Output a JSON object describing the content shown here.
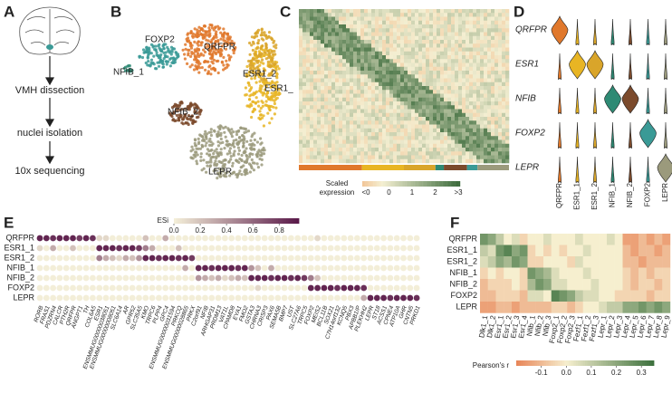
{
  "letters": [
    "A",
    "B",
    "C",
    "D",
    "E",
    "F"
  ],
  "panel_a": {
    "steps": [
      "VMH dissection",
      "nuclei isolation",
      "10x sequencing"
    ]
  },
  "panel_b": {
    "cluster_labels": [
      "QRFPR",
      "FOXP2",
      "NFIB_1",
      "ESR1_2",
      "ESR1_",
      "NFIB_2",
      "LEPR"
    ]
  },
  "clusters": {
    "names": [
      "QRFPR",
      "ESR1_1",
      "ESR1_2",
      "NFIB_1",
      "NFIB_2",
      "FOXP2",
      "LEPR"
    ],
    "colors": [
      "#e0782c",
      "#e8b524",
      "#d9a52a",
      "#2e8a74",
      "#7b4a2c",
      "#3a9a96",
      "#9b9a7c"
    ]
  },
  "panel_c": {
    "colorbar_title": [
      "Scaled",
      "expression"
    ],
    "colorbar_ticks": [
      "<0",
      "0",
      "1",
      "2",
      ">3"
    ]
  },
  "panel_d": {
    "genes": [
      "QRFPR",
      "ESR1",
      "NFIB",
      "FOXP2",
      "LEPR"
    ]
  },
  "panel_e": {
    "colorbar_title": "ESi",
    "colorbar_lim": [
      0,
      0.95
    ],
    "colorbar_ticks": [
      {
        "value": 0,
        "label": "0.0"
      },
      {
        "value": 0.2,
        "label": "0.2"
      },
      {
        "value": 0.4,
        "label": "0.4"
      },
      {
        "value": 0.6,
        "label": "0.6"
      },
      {
        "value": 0.8,
        "label": "0.8"
      }
    ],
    "colors": {
      "low": "#f3eed8",
      "high": "#5a1a4a"
    },
    "rows": [
      "QRFPR",
      "ESR1_1",
      "ESR1_2",
      "NFIB_1",
      "NFIB_2",
      "FOXP2",
      "LEPR"
    ],
    "genes": [
      "RORB",
      "FRAS1",
      "PDZRN4",
      "CALCR",
      "PTH2R",
      "QRFPR",
      "ANGPT1",
      "TH",
      "COL6A5",
      "ESR1",
      "ENSMMUG00000038051",
      "ENSMMUG00000008051",
      "SLC6A14",
      "AR",
      "GPR52",
      "SLC35A5",
      "KMO",
      "TRPC6",
      "PLPP4",
      "GPC4",
      "ENSMMUG00000031594",
      "PRKCQ",
      "ENSMMUG00000028865",
      "PRKX",
      "C2orf91",
      "NFIB",
      "ARHGAP31",
      "PRDM13",
      "VAT1L",
      "CPAMD8",
      "EYA1",
      "FMO2",
      "GSTA3",
      "CHRNA3",
      "CRISP3",
      "PAX6",
      "SEMA5B",
      "BMP7",
      "UST",
      "SLC27A6",
      "TRPC5",
      "FOXP2",
      "MEIS2",
      "BCL11B",
      "SOX21",
      "C7H14orf132",
      "KCNQ5",
      "PBX3",
      "APBB1IP",
      "PLEKHH2",
      "LEPR",
      "ST18",
      "ACSS1",
      "CPNE4",
      "ATP10A",
      "GHR",
      "CNTN5",
      "PRKD1"
    ],
    "values": [
      [
        0.9,
        0.9,
        0.85,
        0.9,
        0.9,
        0.9,
        0.8,
        0.9,
        0.85,
        0.1,
        0.1,
        0,
        0,
        0,
        0,
        0,
        0.2,
        0,
        0,
        0.3,
        0,
        0,
        0,
        0,
        0,
        0,
        0,
        0,
        0,
        0,
        0,
        0,
        0,
        0,
        0,
        0,
        0,
        0,
        0,
        0,
        0,
        0,
        0.1,
        0,
        0,
        0,
        0,
        0,
        0,
        0,
        0,
        0,
        0,
        0,
        0,
        0,
        0,
        0
      ],
      [
        0.1,
        0,
        0.3,
        0,
        0,
        0.2,
        0,
        0,
        0,
        0.9,
        0.9,
        0.9,
        0.85,
        0.9,
        0.9,
        0.8,
        0.5,
        0.3,
        0,
        0,
        0,
        0.2,
        0,
        0,
        0,
        0,
        0,
        0,
        0,
        0,
        0,
        0,
        0,
        0,
        0,
        0,
        0,
        0,
        0,
        0,
        0,
        0,
        0,
        0,
        0,
        0,
        0,
        0,
        0,
        0,
        0,
        0,
        0,
        0,
        0,
        0,
        0,
        0
      ],
      [
        0,
        0,
        0,
        0,
        0,
        0,
        0,
        0,
        0,
        0.5,
        0.3,
        0.2,
        0.1,
        0.3,
        0.2,
        0.4,
        0.9,
        0.9,
        0.85,
        0.9,
        0.9,
        0.85,
        0.9,
        0.8,
        0,
        0,
        0,
        0,
        0,
        0,
        0,
        0,
        0,
        0,
        0,
        0,
        0,
        0,
        0,
        0,
        0,
        0,
        0,
        0,
        0,
        0,
        0,
        0,
        0,
        0,
        0,
        0,
        0,
        0,
        0,
        0,
        0,
        0
      ],
      [
        0,
        0,
        0,
        0,
        0,
        0,
        0,
        0,
        0,
        0,
        0,
        0,
        0,
        0,
        0,
        0,
        0,
        0,
        0,
        0,
        0,
        0,
        0.3,
        0,
        0.9,
        0.9,
        0.85,
        0.9,
        0.9,
        0.9,
        0.85,
        0.9,
        0.4,
        0.2,
        0,
        0.3,
        0,
        0,
        0,
        0,
        0,
        0,
        0,
        0,
        0,
        0,
        0,
        0,
        0,
        0,
        0,
        0,
        0,
        0,
        0,
        0,
        0,
        0
      ],
      [
        0,
        0,
        0,
        0,
        0,
        0,
        0,
        0,
        0,
        0,
        0,
        0,
        0,
        0,
        0,
        0,
        0,
        0,
        0,
        0,
        0,
        0,
        0,
        0,
        0.4,
        0.3,
        0.2,
        0.3,
        0.1,
        0.2,
        0.3,
        0.2,
        0.9,
        0.9,
        0.9,
        0.85,
        0.9,
        0.9,
        0.85,
        0.9,
        0.8,
        0.5,
        0.2,
        0,
        0,
        0,
        0,
        0,
        0,
        0,
        0,
        0,
        0,
        0,
        0,
        0,
        0,
        0
      ],
      [
        0,
        0,
        0,
        0,
        0,
        0,
        0,
        0,
        0,
        0,
        0,
        0,
        0,
        0,
        0,
        0,
        0,
        0,
        0,
        0,
        0,
        0,
        0,
        0,
        0,
        0,
        0,
        0,
        0,
        0,
        0,
        0,
        0,
        0.1,
        0,
        0,
        0,
        0,
        0,
        0,
        0,
        0.9,
        0.9,
        0.9,
        0.9,
        0.85,
        0.9,
        0.9,
        0.9,
        0.85,
        0,
        0,
        0,
        0,
        0,
        0,
        0,
        0
      ],
      [
        0,
        0,
        0,
        0,
        0,
        0,
        0,
        0,
        0,
        0,
        0,
        0,
        0,
        0,
        0,
        0,
        0,
        0,
        0,
        0,
        0,
        0,
        0,
        0,
        0,
        0,
        0,
        0,
        0,
        0,
        0,
        0,
        0,
        0,
        0,
        0,
        0,
        0,
        0,
        0,
        0,
        0,
        0,
        0,
        0,
        0,
        0,
        0,
        0,
        0.3,
        0.9,
        0.9,
        0.9,
        0.85,
        0.9,
        0.9,
        0.9,
        0.85
      ]
    ]
  },
  "panel_f": {
    "colorbar_title": "Pearson's r",
    "colorbar_lim": [
      -0.2,
      0.35
    ],
    "colorbar_ticks": [
      {
        "value": -0.1,
        "label": "-0.1"
      },
      {
        "value": 0,
        "label": "0.0"
      },
      {
        "value": 0.1,
        "label": "0.1"
      },
      {
        "value": 0.2,
        "label": "0.2"
      },
      {
        "value": 0.3,
        "label": "0.3"
      }
    ],
    "colors": {
      "low": "#e8875a",
      "mid": "#f6efcf",
      "high": "#3f723f"
    },
    "rows": [
      "QRFPR",
      "ESR1_1",
      "ESR1_2",
      "NFIB_1",
      "NFIB_2",
      "FOXP2",
      "LEPR"
    ],
    "columns": [
      "Dlk1_1",
      "Dlk1_2",
      "Esr1_1",
      "Esr1_2",
      "Esr1_3",
      "Esr1_4",
      "Nfib_1",
      "Nfib_2",
      "Nfib_3",
      "Foxp2_1",
      "Foxp2_2",
      "Foxp2_3",
      "Fezf1_1",
      "Fezf1_2",
      "Fezf1_3",
      "Lepr_1",
      "Lepr_2",
      "Lepr_3",
      "Lepr_4",
      "Lepr_5",
      "Lepr_6",
      "Lepr_7",
      "Lepr_8",
      "Lepr_9"
    ],
    "values": [
      [
        0.25,
        0.2,
        0.1,
        0,
        0.05,
        -0.05,
        0,
        0,
        0.05,
        0,
        0,
        0,
        0.05,
        0,
        0,
        0,
        0.05,
        0,
        -0.15,
        -0.15,
        -0.1,
        -0.15,
        -0.1,
        -0.15
      ],
      [
        0.1,
        0.05,
        0.25,
        0.3,
        0.2,
        0.25,
        -0.05,
        0,
        -0.05,
        0,
        -0.05,
        0,
        0,
        0.05,
        0,
        0,
        0,
        0,
        -0.1,
        -0.15,
        -0.1,
        -0.1,
        -0.15,
        -0.1
      ],
      [
        0.05,
        0.1,
        0.2,
        0.15,
        0.25,
        0.2,
        -0.05,
        -0.05,
        0,
        0,
        0,
        -0.05,
        0.05,
        0,
        0,
        0,
        0,
        0,
        -0.1,
        -0.1,
        -0.15,
        -0.1,
        -0.1,
        -0.1
      ],
      [
        -0.05,
        0,
        -0.05,
        0,
        0,
        -0.05,
        0.25,
        0.2,
        0.15,
        0.05,
        0,
        0,
        0,
        0.05,
        0,
        0,
        0,
        0,
        -0.05,
        -0.1,
        -0.05,
        -0.1,
        -0.05,
        -0.05
      ],
      [
        -0.1,
        -0.05,
        -0.05,
        -0.05,
        0,
        -0.05,
        0.15,
        0.25,
        0.2,
        0.05,
        0.05,
        0,
        0,
        0,
        0.05,
        0,
        0,
        0,
        -0.05,
        -0.1,
        -0.05,
        -0.05,
        -0.1,
        -0.05
      ],
      [
        -0.1,
        -0.1,
        -0.05,
        -0.05,
        -0.05,
        -0.1,
        0.05,
        0.05,
        0,
        0.3,
        0.25,
        0.2,
        0.1,
        0.05,
        0.05,
        0,
        0,
        -0.05,
        -0.05,
        -0.05,
        -0.05,
        -0.1,
        -0.05,
        -0.05
      ],
      [
        -0.15,
        -0.15,
        -0.1,
        -0.1,
        -0.15,
        -0.1,
        -0.1,
        -0.1,
        -0.1,
        -0.05,
        -0.05,
        -0.1,
        -0.05,
        0,
        0,
        0.05,
        0.1,
        0.1,
        0.2,
        0.2,
        0.25,
        0.2,
        0.25,
        0.2
      ]
    ]
  }
}
